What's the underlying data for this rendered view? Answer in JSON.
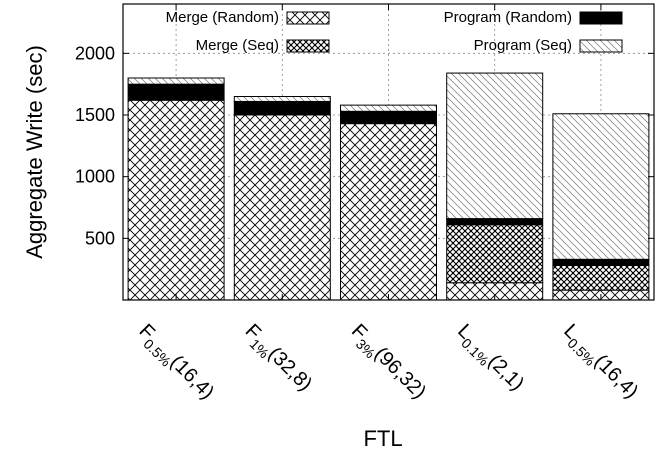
{
  "chart_data": {
    "type": "bar",
    "stacked": true,
    "title": "",
    "xlabel": "FTL",
    "ylabel": "Aggregate Write (sec)",
    "ylim": [
      0,
      2400
    ],
    "yticks": [
      500,
      1000,
      1500,
      2000
    ],
    "grid": true,
    "legend_position": "top",
    "categories": [
      {
        "main": "F",
        "sub": "0.5%",
        "suffix": "(16,4)"
      },
      {
        "main": "F",
        "sub": "1%",
        "suffix": "(32,8)"
      },
      {
        "main": "F",
        "sub": "3%",
        "suffix": "(96,32)"
      },
      {
        "main": "L",
        "sub": "0.1%",
        "suffix": "(2,1)"
      },
      {
        "main": "L",
        "sub": "0.5%",
        "suffix": "(16,4)"
      }
    ],
    "series": [
      {
        "name": "Merge (Random)",
        "pattern": "crosshatch",
        "values": [
          1620,
          1500,
          1430,
          140,
          80
        ]
      },
      {
        "name": "Merge (Seq)",
        "pattern": "dense-dots",
        "values": [
          0,
          0,
          0,
          470,
          200
        ]
      },
      {
        "name": "Program (Random)",
        "pattern": "solid-black",
        "values": [
          130,
          110,
          100,
          50,
          50
        ]
      },
      {
        "name": "Program (Seq)",
        "pattern": "diagonal-lines",
        "values": [
          50,
          40,
          50,
          1180,
          1180
        ]
      }
    ]
  }
}
